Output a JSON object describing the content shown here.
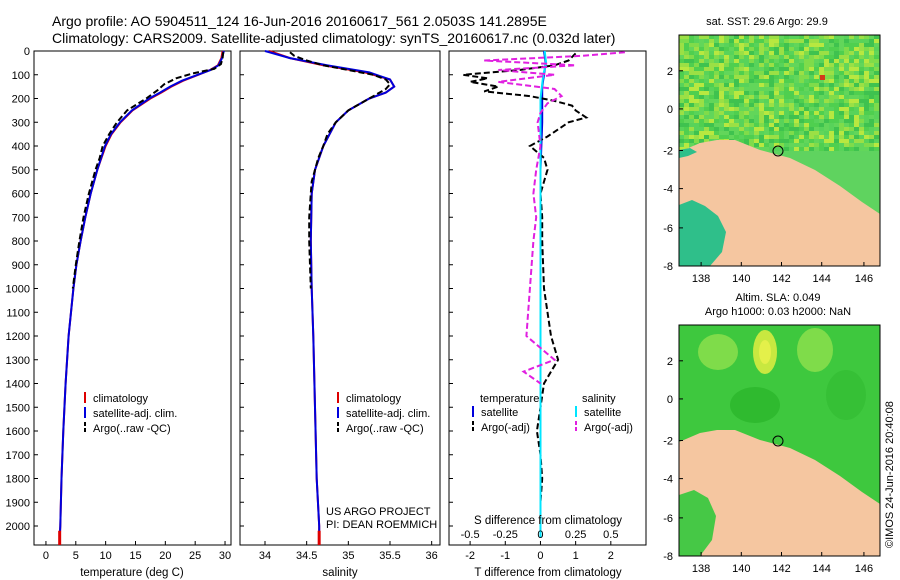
{
  "header": {
    "line1": "Argo profile: AO 5904511_124 16-Jun-2016 20160617_561 2.0503S 141.2895E",
    "line2": "Climatology: CARS2009. Satellite-adjusted climatology: synTS_20160617.nc (0.032d later)"
  },
  "colors": {
    "climatology": "#dd0000",
    "satellite": "#0000dd",
    "argo": "#000000",
    "salinity_sat": "#00e5ff",
    "salinity_argo": "#e020e0",
    "land": "#f5c6a0",
    "ocean_sst": "#59d659",
    "ocean_sla": "#33cc33"
  },
  "chart_data": [
    {
      "type": "line",
      "id": "temperature",
      "xlabel": "temperature (deg C)",
      "xlim": [
        -2,
        31
      ],
      "xticks": [
        0,
        5,
        10,
        15,
        20,
        25,
        30
      ],
      "ylim": [
        0,
        2080
      ],
      "yticks": [
        0,
        100,
        200,
        300,
        400,
        500,
        600,
        700,
        800,
        900,
        1000,
        1100,
        1200,
        1300,
        1400,
        1500,
        1600,
        1700,
        1800,
        1900,
        2000
      ],
      "legend": [
        "climatology",
        "satellite-adj. clim.",
        "Argo(..raw -QC)"
      ],
      "series": [
        {
          "name": "climatology",
          "depth": [
            0,
            30,
            60,
            80,
            100,
            125,
            150,
            175,
            200,
            250,
            300,
            350,
            400,
            500,
            600,
            700,
            800,
            900,
            1000,
            1200,
            1400,
            1600,
            1800,
            2000,
            2050
          ],
          "values": [
            29.6,
            29.4,
            28.8,
            27.5,
            25.5,
            23.0,
            21.0,
            19.3,
            17.5,
            14.5,
            12.5,
            11.0,
            10.0,
            8.6,
            7.5,
            6.6,
            5.8,
            5.1,
            4.6,
            3.8,
            3.3,
            2.9,
            2.6,
            2.4,
            2.3
          ]
        },
        {
          "name": "satellite-adj. clim.",
          "depth": [
            0,
            30,
            60,
            80,
            100,
            125,
            150,
            175,
            200,
            250,
            300,
            350,
            400,
            500,
            600,
            700,
            800,
            900,
            1000,
            1200,
            1400,
            1600,
            1800,
            2000,
            2050
          ],
          "values": [
            29.8,
            29.5,
            28.9,
            27.6,
            25.4,
            22.8,
            20.8,
            19.1,
            17.3,
            14.4,
            12.4,
            10.9,
            9.9,
            8.6,
            7.5,
            6.6,
            5.8,
            5.1,
            4.6,
            3.8,
            3.3,
            2.9,
            2.6,
            2.4,
            2.3
          ]
        },
        {
          "name": "Argo(..raw -QC)",
          "depth": [
            5,
            30,
            55,
            75,
            95,
            115,
            140,
            165,
            200,
            250,
            300,
            350,
            400,
            450,
            500,
            600,
            700,
            800,
            900,
            1000
          ],
          "values": [
            29.7,
            29.6,
            29.3,
            28.2,
            24.5,
            21.8,
            19.8,
            18.7,
            16.8,
            13.6,
            11.9,
            10.6,
            9.5,
            9.0,
            8.3,
            7.2,
            6.3,
            5.6,
            5.0,
            4.5
          ]
        }
      ]
    },
    {
      "type": "line",
      "id": "salinity",
      "xlabel": "salinity",
      "xlim": [
        33.7,
        36.1
      ],
      "xticks": [
        34,
        34.5,
        35,
        35.5,
        36
      ],
      "ylim": [
        0,
        2080
      ],
      "legend": [
        "climatology",
        "satellite-adj. clim.",
        "Argo(..raw -QC)"
      ],
      "annotation": [
        "US ARGO PROJECT",
        "PI: DEAN ROEMMICH"
      ],
      "series": [
        {
          "name": "climatology",
          "depth": [
            0,
            30,
            60,
            90,
            120,
            150,
            175,
            200,
            250,
            300,
            400,
            500,
            600,
            800,
            1000,
            1200,
            1500,
            1800,
            2000,
            2050
          ],
          "values": [
            34.05,
            34.3,
            34.7,
            35.2,
            35.5,
            35.55,
            35.45,
            35.25,
            35.0,
            34.85,
            34.7,
            34.6,
            34.56,
            34.55,
            34.56,
            34.58,
            34.6,
            34.62,
            34.65,
            34.65
          ]
        },
        {
          "name": "satellite-adj. clim.",
          "depth": [
            0,
            30,
            60,
            90,
            120,
            150,
            175,
            200,
            250,
            300,
            400,
            500,
            600,
            800,
            1000,
            1200,
            1500,
            1800,
            2000,
            2050
          ],
          "values": [
            34.0,
            34.3,
            34.75,
            35.25,
            35.5,
            35.55,
            35.45,
            35.25,
            35.0,
            34.85,
            34.7,
            34.6,
            34.56,
            34.55,
            34.56,
            34.58,
            34.6,
            34.62,
            34.65,
            34.65
          ]
        },
        {
          "name": "Argo(..raw -QC)",
          "depth": [
            5,
            20,
            40,
            60,
            80,
            100,
            120,
            140,
            160,
            180,
            200,
            250,
            300,
            350,
            400,
            450,
            500,
            550,
            600,
            700,
            800,
            900,
            1000
          ],
          "values": [
            34.3,
            34.35,
            34.5,
            34.7,
            35.0,
            35.3,
            35.45,
            35.5,
            35.45,
            35.35,
            35.25,
            35.0,
            34.85,
            34.75,
            34.7,
            34.64,
            34.6,
            34.56,
            34.55,
            34.53,
            34.53,
            34.54,
            34.55
          ]
        }
      ]
    },
    {
      "type": "line",
      "id": "difference",
      "xlabel": "T difference from climatology",
      "xlabel_top": "S difference from climatology",
      "xlim": [
        -2.6,
        3.0
      ],
      "xticks": [
        -2,
        -1,
        0,
        1,
        2
      ],
      "xticks_s": [
        "-0.5",
        "-0.25",
        "0",
        "0.25",
        "0.5"
      ],
      "xticks_s_values": [
        -0.5,
        -0.25,
        0,
        0.25,
        0.5
      ],
      "legend_header": [
        "temperature",
        "salinity"
      ],
      "legend": [
        "satellite",
        "Argo(-adj)",
        "satellite",
        "Argo(-adj)"
      ],
      "series": [
        {
          "name": "temperature satellite",
          "depth": [
            0,
            50,
            100,
            150,
            200,
            300,
            500,
            700,
            1000,
            1500,
            2000,
            2050
          ],
          "values": [
            0.1,
            0.15,
            0.1,
            0.05,
            0.05,
            0.05,
            0.0,
            0.0,
            0.0,
            0.0,
            0.0,
            0.0
          ]
        },
        {
          "name": "temperature Argo(-adj)",
          "depth": [
            10,
            40,
            60,
            80,
            100,
            115,
            130,
            150,
            170,
            190,
            210,
            230,
            250,
            280,
            300,
            330,
            360,
            400,
            450,
            500,
            550,
            600,
            700,
            800,
            1000,
            1200,
            1300,
            1350,
            1400,
            1500,
            1600,
            1700,
            1800,
            1900
          ],
          "values": [
            1.0,
            0.8,
            0.4,
            -0.6,
            -2.2,
            -1.5,
            -2.0,
            -1.2,
            -1.6,
            -0.3,
            0.4,
            0.9,
            1.0,
            1.3,
            0.8,
            0.5,
            0.2,
            -0.3,
            0.1,
            0.2,
            0.1,
            0.0,
            0.05,
            0.05,
            0.1,
            0.3,
            0.5,
            0.3,
            0.1,
            0.0,
            -0.1,
            0.0,
            0.05,
            0.0
          ]
        },
        {
          "name": "salinity satellite",
          "depth": [
            0,
            50,
            100,
            150,
            200,
            300,
            500,
            700,
            1000,
            1500,
            2000,
            2050
          ],
          "values": [
            0.03,
            0.04,
            0.02,
            0.01,
            0.0,
            0.0,
            0.0,
            0.0,
            0.0,
            0.0,
            0.0,
            0.0
          ]
        },
        {
          "name": "salinity Argo(-adj)",
          "depth": [
            5,
            20,
            40,
            60,
            80,
            100,
            130,
            160,
            190,
            220,
            260,
            300,
            400,
            500,
            600,
            700,
            800,
            1200,
            1300,
            1350,
            1400
          ],
          "values": [
            0.6,
            0.3,
            -0.4,
            0.25,
            -0.3,
            0.1,
            -0.3,
            0.1,
            0.15,
            0.05,
            0.0,
            -0.02,
            0.0,
            -0.03,
            -0.05,
            -0.03,
            -0.05,
            -0.1,
            0.1,
            -0.12,
            0.0
          ]
        }
      ]
    },
    {
      "type": "heatmap",
      "id": "sst_map",
      "title": "sat. SST: 29.6 Argo: 29.9",
      "xticks": [
        "138",
        "140",
        "142",
        "144",
        "146"
      ],
      "yticks": [
        "2",
        "0",
        "-2",
        "-4",
        "-6",
        "-8"
      ]
    },
    {
      "type": "heatmap",
      "id": "sla_map",
      "title_line1": "Altim. SLA: 0.049",
      "title_line2": "Argo h1000: 0.03 h2000: NaN",
      "xticks": [
        "138",
        "140",
        "142",
        "144",
        "146"
      ],
      "yticks": [
        "2",
        "0",
        "-2",
        "-4",
        "-6",
        "-8"
      ]
    }
  ],
  "footer": {
    "credit": "©IMOS 24-Jun-2016 20:40:08"
  }
}
